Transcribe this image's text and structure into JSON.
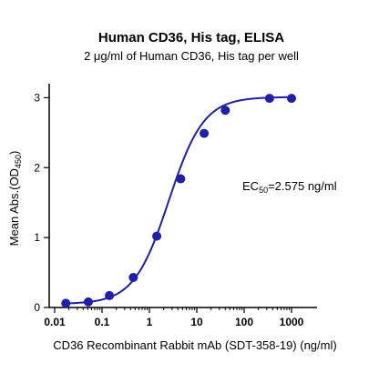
{
  "chart_data": {
    "type": "scatter",
    "title": "Human CD36, His tag, ELISA",
    "subtitle": "2 μg/ml of Human CD36, His tag per well",
    "xlabel": "CD36 Recombinant Rabbit mAb (SDT-358-19) (ng/ml)",
    "ylabel": {
      "main": "Mean Abs.(OD",
      "sub": "450",
      "close": ")"
    },
    "xscale": "log",
    "xlim": [
      0.01,
      1000
    ],
    "ylim": [
      0,
      3.2
    ],
    "x_ticks": [
      {
        "value": 0.01,
        "label": "0.01"
      },
      {
        "value": 0.1,
        "label": "0.1"
      },
      {
        "value": 1,
        "label": "1"
      },
      {
        "value": 10,
        "label": "10"
      },
      {
        "value": 100,
        "label": "100"
      },
      {
        "value": 1000,
        "label": "1000"
      }
    ],
    "y_ticks": [
      {
        "value": 0,
        "label": "0"
      },
      {
        "value": 1,
        "label": "1"
      },
      {
        "value": 2,
        "label": "2"
      },
      {
        "value": 3,
        "label": "3"
      }
    ],
    "grid": false,
    "series": [
      {
        "color": "#1f1fa8",
        "points": [
          {
            "x": 0.0172,
            "y": 0.06
          },
          {
            "x": 0.0514,
            "y": 0.08
          },
          {
            "x": 0.143,
            "y": 0.17
          },
          {
            "x": 0.457,
            "y": 0.43
          },
          {
            "x": 1.43,
            "y": 1.02
          },
          {
            "x": 4.57,
            "y": 1.84
          },
          {
            "x": 14.3,
            "y": 2.49
          },
          {
            "x": 40,
            "y": 2.82
          },
          {
            "x": 343,
            "y": 2.99
          },
          {
            "x": 1000,
            "y": 2.99
          }
        ],
        "fit": {
          "model": "4PL",
          "bottom": 0.05,
          "top": 3.01,
          "ec50": 2.575,
          "hill": 1.18
        }
      }
    ],
    "annotation": {
      "main": "EC",
      "sub": "50",
      "rest": "=2.575 ng/ml"
    }
  }
}
